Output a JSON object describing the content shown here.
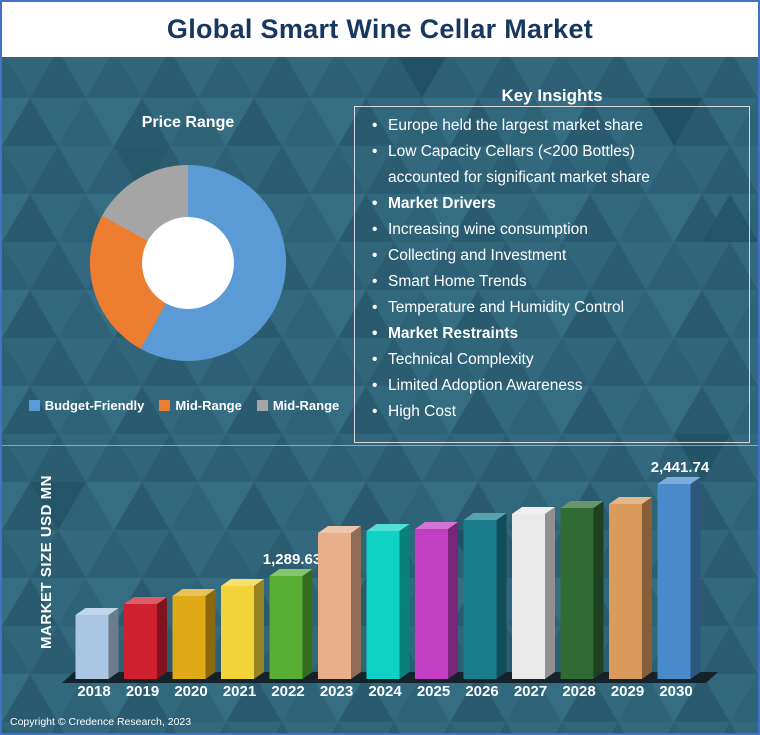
{
  "title": "Global Smart Wine Cellar Market",
  "colors": {
    "border": "#4472c4",
    "background": "#31677c",
    "title_text": "#17375e",
    "text": "#ffffff",
    "chart_floor": "#15222c"
  },
  "donut": {
    "title": "Price Range",
    "segments": [
      {
        "label": "Budget-Friendly",
        "color": "#5b9bd5",
        "value": 58
      },
      {
        "label": "Mid-Range",
        "color": "#ed7d31",
        "value": 25
      },
      {
        "label": "Mid-Range",
        "color": "#a5a5a5",
        "value": 17
      }
    ]
  },
  "insights": {
    "title": "Key Insights",
    "items": [
      {
        "text": "Europe held the largest market share",
        "bold": false
      },
      {
        "text": "Low Capacity Cellars (<200 Bottles) accounted for significant market share",
        "bold": false
      },
      {
        "text": "Market Drivers",
        "bold": true
      },
      {
        "text": "Increasing wine consumption",
        "bold": false
      },
      {
        "text": "Collecting and Investment",
        "bold": false
      },
      {
        "text": "Smart Home Trends",
        "bold": false
      },
      {
        "text": "Temperature and Humidity Control",
        "bold": false
      },
      {
        "text": "Market Restraints",
        "bold": true
      },
      {
        "text": "Technical Complexity",
        "bold": false
      },
      {
        "text": "Limited Adoption Awareness",
        "bold": false
      },
      {
        "text": "High Cost",
        "bold": false
      }
    ]
  },
  "chart_data": {
    "type": "bar",
    "title": "Global Smart Wine Cellar Market size by year",
    "xlabel": "",
    "ylabel": "MARKET SIZE USD MN",
    "unit": "USD MN",
    "ylim": [
      0,
      2600
    ],
    "grid": false,
    "legend_position": "none",
    "categories": [
      2018,
      2019,
      2020,
      2021,
      2022,
      2023,
      2024,
      2025,
      2026,
      2027,
      2028,
      2029,
      2030
    ],
    "values": [
      800,
      940,
      1045,
      1165,
      1289.63,
      1830,
      1855,
      1880,
      1985,
      2070,
      2140,
      2195,
      2441.74
    ],
    "bar_colors": [
      "#a9c7e4",
      "#cf2030",
      "#dfa918",
      "#f2d338",
      "#57ae32",
      "#e8b08a",
      "#0fd1c5",
      "#c23ec2",
      "#1b7d8c",
      "#e9e9e9",
      "#2f6b33",
      "#d99a5b",
      "#4a8ccb"
    ],
    "data_labels": {
      "2022": "1,289.63",
      "2030": "2,441.74"
    }
  },
  "footer": {
    "copyright": "Copyright © Credence Research, 2023"
  }
}
